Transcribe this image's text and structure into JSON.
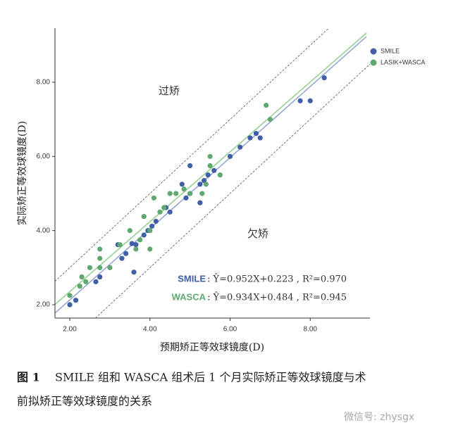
{
  "chart_data": {
    "type": "scatter",
    "x_label": "预期矫正等效球镜度(D)",
    "y_label": "实际矫正等效球镜度(D)",
    "xlim": [
      1.63,
      9.49
    ],
    "ylim": [
      1.64,
      9.46
    ],
    "xticks": [
      {
        "value": 2,
        "label": "2.00"
      },
      {
        "value": 4,
        "label": "4.00"
      },
      {
        "value": 6,
        "label": "6.00"
      },
      {
        "value": 8,
        "label": "8.00"
      }
    ],
    "yticks": [
      {
        "value": 2,
        "label": "2.00"
      },
      {
        "value": 4,
        "label": "4.00"
      },
      {
        "value": 6,
        "label": "6.00"
      },
      {
        "value": 8,
        "label": "8.00"
      }
    ],
    "legend": "top-right",
    "series": [
      {
        "name": "SMILE",
        "color": "#3f5fa6",
        "x": [
          2.0,
          2.15,
          2.65,
          2.75,
          3.2,
          3.3,
          3.4,
          3.55,
          3.6,
          3.65,
          3.85,
          3.95,
          4.05,
          4.15,
          4.4,
          4.5,
          4.8,
          4.9,
          5.0,
          5.0,
          5.25,
          5.25,
          5.35,
          5.45,
          5.6,
          6.0,
          6.25,
          6.5,
          6.65,
          6.75,
          7.75,
          8.0,
          8.35
        ],
        "values": [
          2.0,
          2.12,
          2.62,
          2.75,
          3.62,
          3.25,
          3.38,
          3.65,
          2.88,
          3.62,
          3.88,
          4.0,
          4.12,
          4.25,
          4.62,
          4.5,
          5.25,
          4.88,
          5.75,
          5.0,
          4.75,
          5.25,
          5.35,
          5.5,
          5.62,
          6.0,
          6.25,
          6.5,
          6.62,
          6.5,
          7.5,
          7.5,
          8.12
        ]
      },
      {
        "name": "LASIK+WASCA",
        "color": "#5fa870",
        "x": [
          2.0,
          2.25,
          2.3,
          2.4,
          2.5,
          2.75,
          2.75,
          2.75,
          3.0,
          3.25,
          3.5,
          3.65,
          3.75,
          3.85,
          4.0,
          4.0,
          4.1,
          4.25,
          4.35,
          4.5,
          4.65,
          4.85,
          5.0,
          5.3,
          5.4,
          5.5,
          5.5,
          5.75,
          6.9,
          7.0
        ],
        "values": [
          2.25,
          2.5,
          2.75,
          2.62,
          3.0,
          3.0,
          3.25,
          3.5,
          3.0,
          3.62,
          4.0,
          3.5,
          3.75,
          4.38,
          3.5,
          4.0,
          4.88,
          4.5,
          4.62,
          5.0,
          5.0,
          5.12,
          5.0,
          5.0,
          5.25,
          5.75,
          6.0,
          5.5,
          7.38,
          7.0
        ]
      }
    ],
    "annotations": [
      "过矫",
      "欠矫"
    ],
    "equations": [
      {
        "label": "SMILE",
        "text": ": Ŷ=0.952X+0.223 , R²=0.970"
      },
      {
        "label": "WASCA",
        "text": ": Ŷ=0.934X+0.484 , R²=0.945"
      }
    ]
  },
  "caption": {
    "label": "图 1",
    "line1": "SMILE 组和 WASCA 组术后 1 个月实际矫正等效球镜度与术",
    "line2": "前拟矫正等效球镜度的关系"
  },
  "watermark": "微信号: zhysgx"
}
